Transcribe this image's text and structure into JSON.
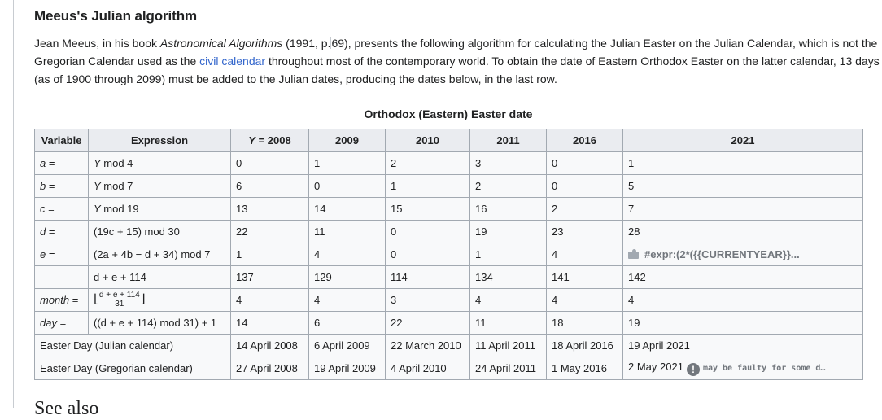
{
  "section": {
    "title": "Meeus's Julian algorithm",
    "para": {
      "l1a": "Jean Meeus, in his book ",
      "book": "Astronomical Algorithms",
      "l1b": " (1991, p.",
      "l1c": "69), presents the following algorithm for calculating the Julian Easter on the Julian Calendar, which is not the",
      "l2a": "Gregorian Calendar used as the ",
      "link": "civil calendar",
      "l2b": " throughout most of the contemporary world. To obtain the date of Eastern Orthodox Easter on the latter calendar, 13 days",
      "l3": "(as of 1900 through 2099) must be added to the Julian dates, producing the dates below, in the last row."
    },
    "next_heading": "See also"
  },
  "table": {
    "caption": "Orthodox (Eastern) Easter date",
    "headers": {
      "variable": "Variable",
      "expression": "Expression",
      "y_var": "Y",
      "y_eq": " = 2008",
      "y2009": "2009",
      "y2010": "2010",
      "y2011": "2011",
      "y2016": "2016",
      "y2021": "2021"
    },
    "rows": {
      "a": {
        "var": "a",
        "eq": " =",
        "expr_v": "Y",
        "expr_t": " mod 4",
        "v": [
          "0",
          "1",
          "2",
          "3",
          "0",
          "1"
        ]
      },
      "b": {
        "var": "b",
        "eq": " =",
        "expr_v": "Y",
        "expr_t": " mod 7",
        "v": [
          "6",
          "0",
          "1",
          "2",
          "0",
          "5"
        ]
      },
      "c": {
        "var": "c",
        "eq": " =",
        "expr_v": "Y",
        "expr_t": " mod 19",
        "v": [
          "13",
          "14",
          "15",
          "16",
          "2",
          "7"
        ]
      },
      "d": {
        "var": "d",
        "eq": " =",
        "expr": "(19c + 15) mod 30",
        "v": [
          "22",
          "11",
          "0",
          "19",
          "23",
          "28"
        ]
      },
      "e": {
        "var": "e",
        "eq": " =",
        "expr": "(2a + 4b − d + 34) mod 7",
        "v": [
          "1",
          "4",
          "0",
          "1",
          "4"
        ],
        "v2021": "#expr:(2*({{CURRENTYEAR}}..."
      },
      "sum": {
        "expr": "d + e + 114",
        "v": [
          "137",
          "129",
          "114",
          "134",
          "141",
          "142"
        ]
      },
      "month": {
        "var": "month",
        "eq": " =",
        "bracket_l": "⌊",
        "num": "d + e + 114",
        "den": "31",
        "bracket_r": "⌋",
        "v": [
          "4",
          "4",
          "3",
          "4",
          "4",
          "4"
        ]
      },
      "day": {
        "var": "day",
        "eq": " =",
        "expr": "((d + e + 114) mod 31) + 1",
        "v": [
          "14",
          "6",
          "22",
          "11",
          "18",
          "19"
        ]
      },
      "julian": {
        "label": "Easter Day (Julian calendar)",
        "v": [
          "14 April 2008",
          "6 April 2009",
          "22 March 2010",
          "11 April 2011",
          "18 April 2016",
          "19 April 2021"
        ]
      },
      "gregorian": {
        "label": "Easter Day (Gregorian calendar)",
        "v": [
          "27 April 2008",
          "19 April 2009",
          "4 April 2010",
          "24 April 2011",
          "1 May 2016",
          "2 May 2021"
        ],
        "warn_mark": "!",
        "warn_text": "may be faulty for some d…"
      }
    }
  }
}
